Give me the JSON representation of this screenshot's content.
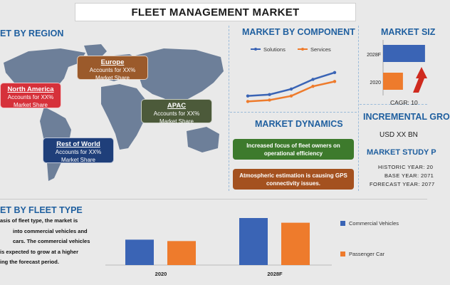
{
  "title": "FLEET MANAGEMENT MARKET",
  "sections": {
    "by_region": "ET BY REGION",
    "by_component": "MARKET BY COMPONENT",
    "market_size": "MARKET SIZ",
    "dynamics": "MARKET DYNAMICS",
    "incremental": "INCREMENTAL GRO",
    "study_period": "MARKET STUDY P",
    "fleet_type": "ET BY FLEET TYPE"
  },
  "regions": [
    {
      "name": "Europe",
      "line1": "Accounts for XX%",
      "line2": "Market Share",
      "color": "#9b5a2b"
    },
    {
      "name": "North America",
      "line1": "Accounts for XX%",
      "line2": "Market Share",
      "color": "#d6313a"
    },
    {
      "name": "APAC",
      "line1": "Accounts for XX%",
      "line2": "Market Share",
      "color": "#4c5a3a"
    },
    {
      "name": "Rest of World",
      "line1": "Accounts for XX%",
      "line2": "Market Share",
      "color": "#1f3f7a"
    }
  ],
  "dynamics": {
    "driver": "Increased focus of fleet owners on operational efficiency",
    "challenge": "Atmospheric estimation is causing GPS connectivity issues.",
    "driver_color": "#3d7a2c",
    "challenge_color": "#a4511f"
  },
  "cagr": "CAGR: 10",
  "incremental_value": "USD XX BN",
  "study": {
    "historic": "HISTORIC YEAR: 20",
    "base": "BASE YEAR: 2071",
    "forecast": "FORECAST YEAR: 2077"
  },
  "fleet_text": [
    "asis of fleet type, the market is",
    "into commercial vehicles and",
    "cars. The commercial vehicles",
    "is expected to grow at a higher",
    "ing the forecast period."
  ],
  "colors": {
    "blue": "#3a64b5",
    "orange": "#ee7b2c",
    "heading": "#1f5f9f"
  },
  "chart_data": [
    {
      "type": "line",
      "title": "MARKET BY COMPONENT",
      "x": [
        1,
        2,
        3,
        4,
        5
      ],
      "series": [
        {
          "name": "Solutions",
          "values": [
            2.0,
            2.2,
            3.0,
            4.4,
            5.4
          ]
        },
        {
          "name": "Services",
          "values": [
            1.2,
            1.4,
            2.0,
            3.4,
            4.1
          ]
        }
      ],
      "ylim": [
        0,
        6
      ]
    },
    {
      "type": "bar",
      "orientation": "horizontal",
      "title": "MARKET SIZ",
      "categories": [
        "2028F",
        "2020"
      ],
      "values": [
        95,
        45
      ],
      "xlim": [
        0,
        100
      ]
    },
    {
      "type": "bar",
      "title": "ET BY FLEET TYPE",
      "categories": [
        "2020",
        "2028F"
      ],
      "series": [
        {
          "name": "Commercial Vehicles",
          "values": [
            54,
            100
          ]
        },
        {
          "name": "Passenger Car",
          "values": [
            51,
            90
          ]
        }
      ],
      "ylim": [
        0,
        100
      ]
    }
  ]
}
